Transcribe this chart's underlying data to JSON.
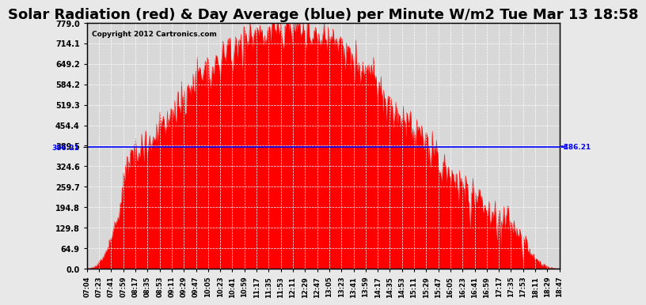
{
  "title": "Solar Radiation (red) & Day Average (blue) per Minute W/m2 Tue Mar 13 18:58",
  "copyright": "Copyright 2012 Cartronics.com",
  "y_ticks": [
    0.0,
    64.9,
    129.8,
    194.8,
    259.7,
    324.6,
    389.5,
    454.4,
    519.3,
    584.2,
    649.2,
    714.1,
    779.0
  ],
  "y_max": 779.0,
  "y_min": 0.0,
  "day_average": 386.21,
  "x_labels": [
    "07:04",
    "07:23",
    "07:41",
    "07:59",
    "08:17",
    "08:35",
    "08:53",
    "09:11",
    "09:29",
    "09:47",
    "10:05",
    "10:23",
    "10:41",
    "10:59",
    "11:17",
    "11:35",
    "11:53",
    "12:11",
    "12:29",
    "12:47",
    "13:05",
    "13:23",
    "13:41",
    "13:59",
    "14:17",
    "14:35",
    "14:53",
    "15:11",
    "15:29",
    "15:47",
    "16:05",
    "16:23",
    "16:41",
    "16:59",
    "17:17",
    "17:35",
    "17:53",
    "18:11",
    "18:29",
    "18:47"
  ],
  "background_color": "#e8e8e8",
  "plot_bg_color": "#d8d8d8",
  "fill_color": "#ff0000",
  "line_color": "#0000ff",
  "title_font_size": 13,
  "grid_color": "#ffffff",
  "left_label": "386:21",
  "right_label": "386.21"
}
